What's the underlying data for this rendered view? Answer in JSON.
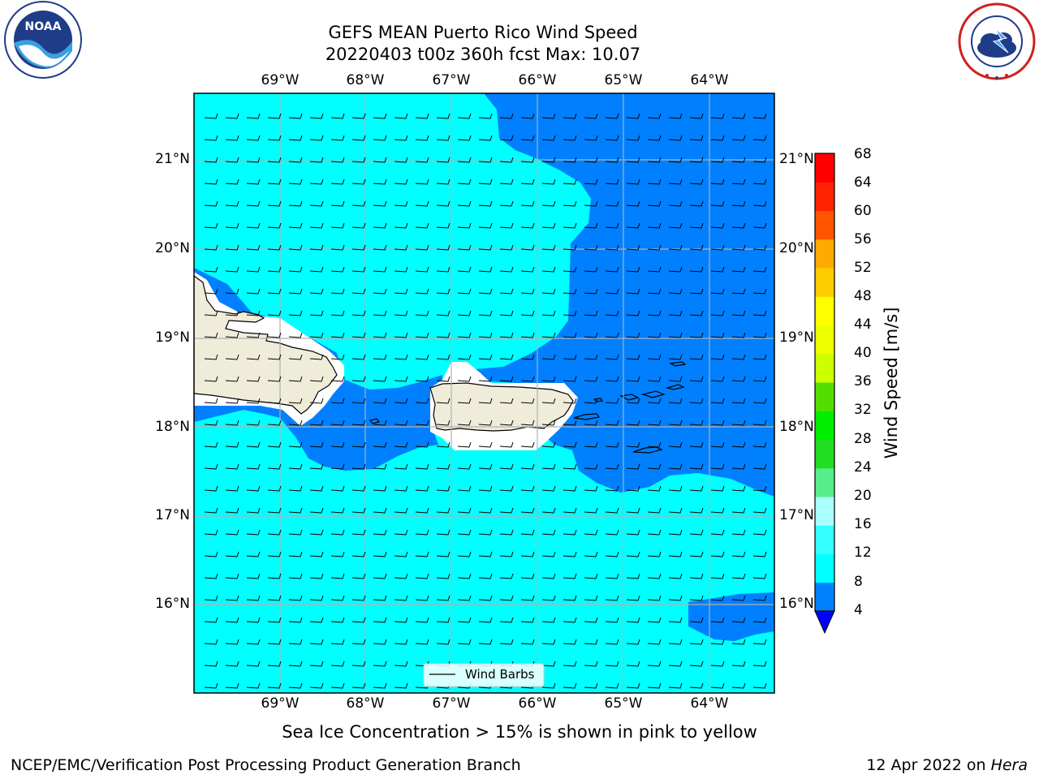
{
  "header": {
    "title_line1": "GEFS MEAN Puerto Rico Wind Speed",
    "title_line2": "20220403 t00z 360h fcst   Max: 10.07"
  },
  "logos": {
    "left": {
      "text": "NOAA",
      "ring_text": "NATIONAL OCEANIC AND ATMOSPHERIC ADMINISTRATION • U.S. DEPARTMENT OF COMMERCE"
    },
    "right": {
      "ring_text": "NATIONAL WEATHER SERVICE"
    }
  },
  "map": {
    "lon_ticks": [
      "69°W",
      "68°W",
      "67°W",
      "66°W",
      "65°W",
      "64°W"
    ],
    "lat_ticks": [
      "21°N",
      "20°N",
      "19°N",
      "18°N",
      "17°N",
      "16°N"
    ],
    "legend_label": "Wind Barbs",
    "colors": {
      "ocean_light": "#00ffff",
      "ocean_dark": "#0080ff",
      "land": "#efedda",
      "masked": "#ffffff",
      "grid": "#b0b0b0"
    }
  },
  "colorbar": {
    "label": "Wind Speed [m/s]",
    "ticks": [
      "68",
      "64",
      "60",
      "56",
      "52",
      "48",
      "44",
      "40",
      "36",
      "32",
      "28",
      "24",
      "20",
      "16",
      "12",
      "8",
      "4"
    ],
    "colors": [
      "#0000ff",
      "#0080ff",
      "#00ffff",
      "#33ffff",
      "#66ffff",
      "#aaffff",
      "#55ee88",
      "#22dd22",
      "#00ee00",
      "#55dd00",
      "#aaee00",
      "#ccff00",
      "#eeff00",
      "#ffff00",
      "#ffcc00",
      "#ffaa00",
      "#ff8800",
      "#ff5500",
      "#ff2200",
      "#ff0000"
    ]
  },
  "notes": {
    "sea_ice": "Sea Ice Concentration > 15% is shown in pink to yellow"
  },
  "footer": {
    "left": "NCEP/EMC/Verification Post Processing Product Generation Branch",
    "date": "12 Apr 2022 on",
    "host": "Hera"
  }
}
